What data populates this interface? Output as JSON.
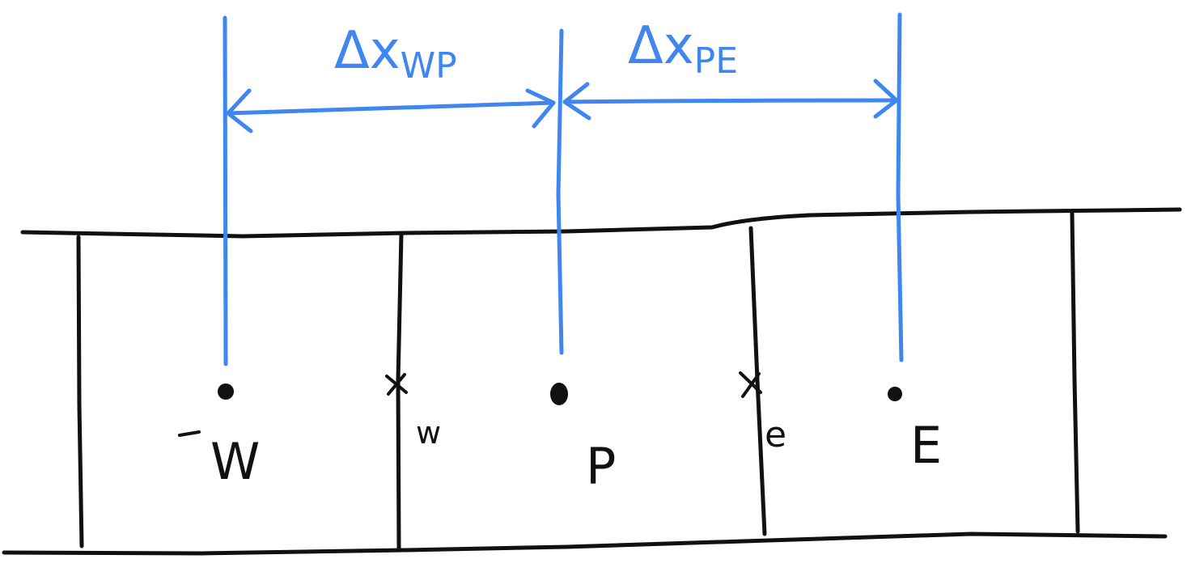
{
  "diagram": {
    "nodes": [
      {
        "id": "W",
        "label": "W"
      },
      {
        "id": "P",
        "label": "P"
      },
      {
        "id": "E",
        "label": "E"
      }
    ],
    "faces": [
      {
        "id": "w",
        "label": "w"
      },
      {
        "id": "e",
        "label": "e"
      }
    ],
    "distances": [
      {
        "id": "dx_wp",
        "delta": "Δx",
        "subscript": "WP",
        "from": "W",
        "to": "P"
      },
      {
        "id": "dx_pe",
        "delta": "Δx",
        "subscript": "PE",
        "from": "P",
        "to": "E"
      }
    ],
    "colors": {
      "ink": "#111111",
      "dimension": "#3f86f0",
      "background": "#ffffff"
    }
  }
}
